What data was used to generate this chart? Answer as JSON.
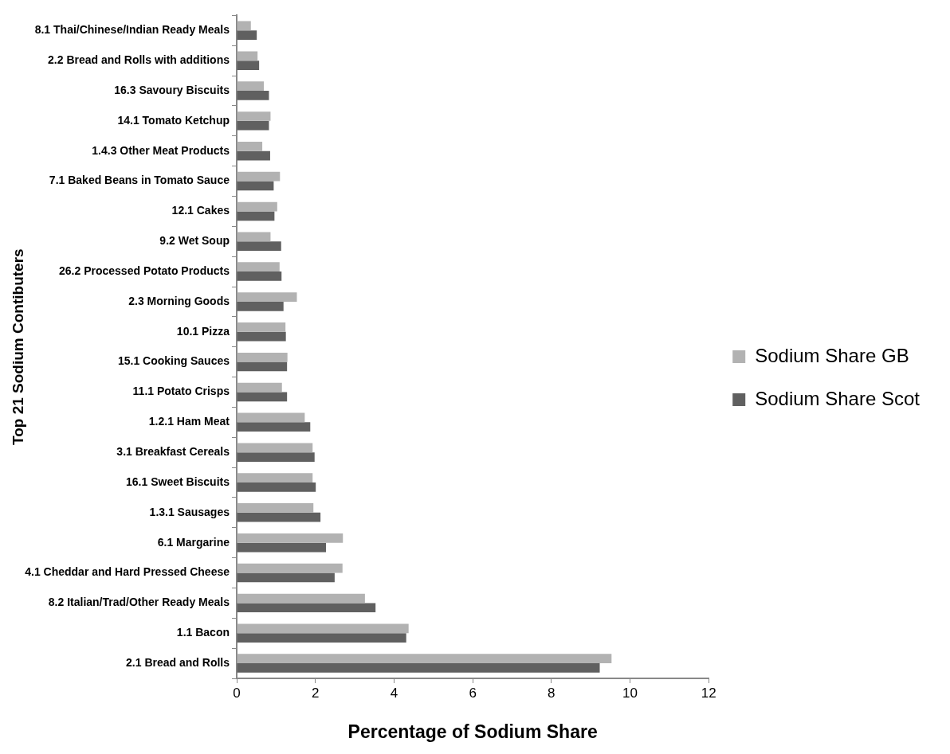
{
  "chart_data": {
    "type": "bar",
    "orientation": "horizontal",
    "xlabel": "Percentage of Sodium Share",
    "ylabel": "Top 21 Sodium Contibuters",
    "categories": [
      "8.1 Thai/Chinese/Indian Ready Meals",
      "2.2 Bread and Rolls with additions",
      "16.3 Savoury Biscuits",
      "14.1 Tomato Ketchup",
      "1.4.3 Other Meat Products",
      "7.1 Baked Beans in Tomato Sauce",
      "12.1 Cakes",
      "9.2 Wet Soup",
      "26.2 Processed Potato Products",
      "2.3 Morning Goods",
      "10.1 Pizza",
      "15.1 Cooking Sauces",
      "11.1 Potato Crisps",
      "1.2.1 Ham Meat",
      "3.1 Breakfast Cereals",
      "16.1 Sweet Biscuits",
      "1.3.1 Sausages",
      "6.1 Margarine",
      "4.1 Cheddar and Hard Pressed Cheese",
      "8.2 Italian/Trad/Other Ready Meals",
      "1.1 Bacon",
      "2.1 Bread and Rolls"
    ],
    "series": [
      {
        "name": "Sodium Share GB",
        "color": "#b2b2b2",
        "values": [
          0.36,
          0.53,
          0.69,
          0.86,
          0.65,
          1.1,
          1.03,
          0.86,
          1.09,
          1.53,
          1.24,
          1.29,
          1.15,
          1.73,
          1.93,
          1.93,
          1.95,
          2.7,
          2.69,
          3.26,
          4.37,
          9.53
        ]
      },
      {
        "name": "Sodium Share Scot",
        "color": "#606060",
        "values": [
          0.51,
          0.57,
          0.82,
          0.82,
          0.85,
          0.94,
          0.96,
          1.13,
          1.14,
          1.19,
          1.25,
          1.28,
          1.28,
          1.87,
          1.98,
          2.01,
          2.13,
          2.27,
          2.49,
          3.53,
          4.31,
          9.23
        ]
      }
    ],
    "xlim": [
      0,
      12
    ],
    "xticks": [
      0,
      2,
      4,
      6,
      8,
      10,
      12
    ],
    "grid": false,
    "legend": "right"
  }
}
